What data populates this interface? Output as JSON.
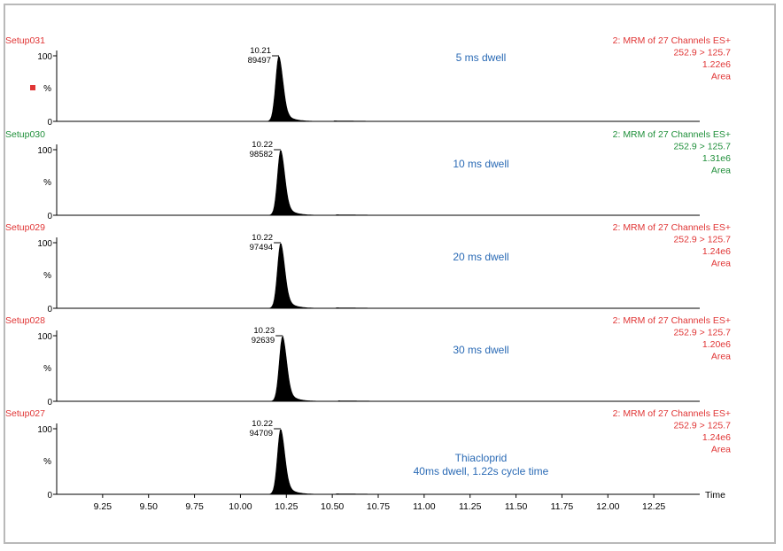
{
  "colors": {
    "red": "#e03535",
    "green": "#1f8f3a",
    "blue": "#2a6ab5",
    "black": "#000000"
  },
  "chart_data": {
    "type": "area",
    "x_axis": {
      "label": "Time",
      "min": 9.0,
      "max": 12.5,
      "ticks": [
        9.25,
        9.5,
        9.75,
        10.0,
        10.25,
        10.5,
        10.75,
        11.0,
        11.25,
        11.5,
        11.75,
        12.0,
        12.25
      ],
      "tick_labels": [
        "9.25",
        "9.50",
        "9.75",
        "10.00",
        "10.25",
        "10.50",
        "10.75",
        "11.00",
        "11.25",
        "11.50",
        "11.75",
        "12.00",
        "12.25"
      ]
    },
    "y_axis": {
      "unit": "%",
      "min": 0,
      "max": 100,
      "tick_labels": [
        "0",
        "100"
      ]
    },
    "legend_marker": true,
    "panels": [
      {
        "setup": "Setup031",
        "setup_color": "red",
        "peak_time_label": "10.21",
        "peak_height_label": "89497",
        "peak_time": 10.21,
        "peak_height": 89497,
        "annotation_lines": [
          "5 ms dwell"
        ],
        "info_lines": [
          "2: MRM of 27 Channels ES+",
          "252.9 > 125.7",
          "1.22e6",
          "Area"
        ],
        "info_color": "red"
      },
      {
        "setup": "Setup030",
        "setup_color": "green",
        "peak_time_label": "10.22",
        "peak_height_label": "98582",
        "peak_time": 10.22,
        "peak_height": 98582,
        "annotation_lines": [
          "10 ms dwell"
        ],
        "info_lines": [
          "2: MRM of 27 Channels ES+",
          "252.9 > 125.7",
          "1.31e6",
          "Area"
        ],
        "info_color": "green"
      },
      {
        "setup": "Setup029",
        "setup_color": "red",
        "peak_time_label": "10.22",
        "peak_height_label": "97494",
        "peak_time": 10.22,
        "peak_height": 97494,
        "annotation_lines": [
          "20 ms dwell"
        ],
        "info_lines": [
          "2: MRM of 27 Channels ES+",
          "252.9 > 125.7",
          "1.24e6",
          "Area"
        ],
        "info_color": "red"
      },
      {
        "setup": "Setup028",
        "setup_color": "red",
        "peak_time_label": "10.23",
        "peak_height_label": "92639",
        "peak_time": 10.23,
        "peak_height": 92639,
        "annotation_lines": [
          "30 ms dwell"
        ],
        "info_lines": [
          "2: MRM of 27 Channels ES+",
          "252.9 > 125.7",
          "1.20e6",
          "Area"
        ],
        "info_color": "red"
      },
      {
        "setup": "Setup027",
        "setup_color": "red",
        "peak_time_label": "10.22",
        "peak_height_label": "94709",
        "peak_time": 10.22,
        "peak_height": 94709,
        "annotation_lines": [
          "Thiacloprid",
          "40ms dwell, 1.22s cycle time"
        ],
        "info_lines": [
          "2: MRM of 27 Channels ES+",
          "252.9 > 125.7",
          "1.24e6",
          "Area"
        ],
        "info_color": "red"
      }
    ]
  }
}
